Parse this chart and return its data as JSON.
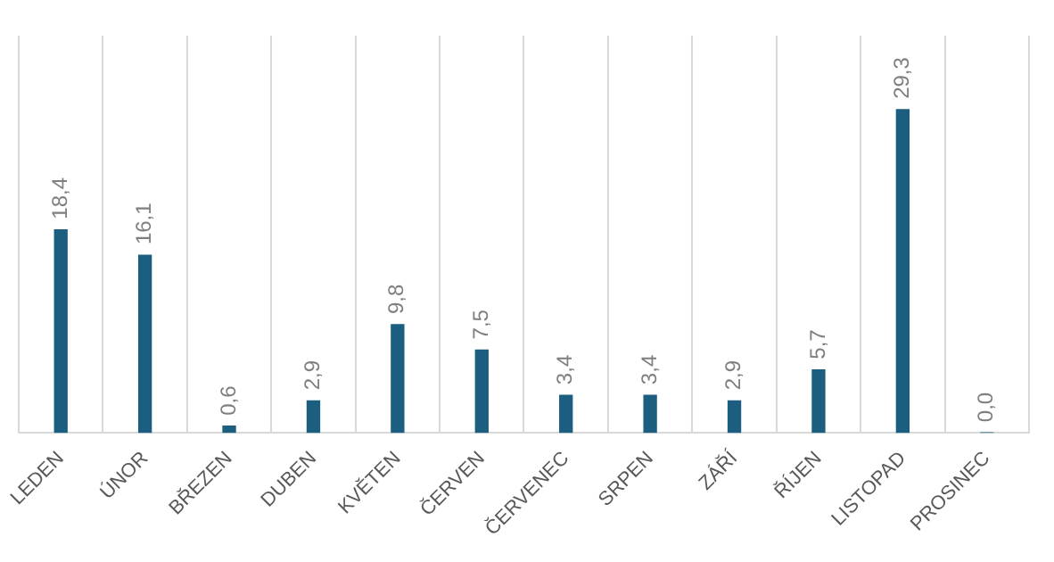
{
  "chart_data": {
    "type": "bar",
    "categories": [
      "LEDEN",
      "ÚNOR",
      "BŘEZEN",
      "DUBEN",
      "KVĚTEN",
      "ČERVEN",
      "ČERVENEC",
      "SRPEN",
      "ZÁŘÍ",
      "ŘÍJEN",
      "LISTOPAD",
      "PROSINEC"
    ],
    "series": [
      {
        "color": "#1b5e7f",
        "values": [
          18.4,
          16.1,
          0.6,
          2.9,
          9.8,
          7.5,
          3.4,
          3.4,
          2.9,
          5.7,
          29.3,
          0.0
        ],
        "value_labels": [
          "18,4",
          "16,1",
          "0,6",
          "2,9",
          "9,8",
          "7,5",
          "3,4",
          "3,4",
          "2,9",
          "5,7",
          "29,3",
          "0,0"
        ]
      }
    ],
    "ylim": [
      0,
      36
    ],
    "grid": "x",
    "tick_labels": "x",
    "legend": false
  }
}
